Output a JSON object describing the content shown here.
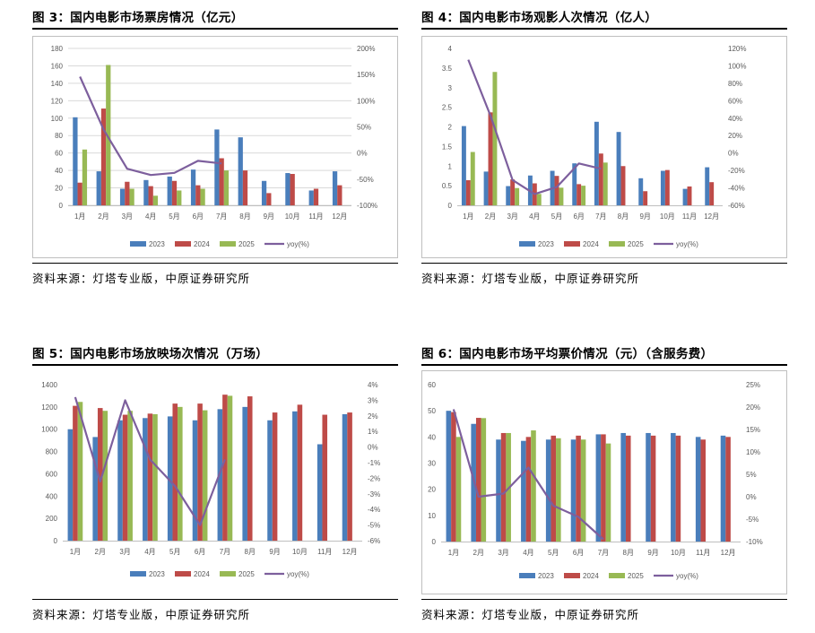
{
  "colors": {
    "2023": "#4a7ebb",
    "2024": "#be4b48",
    "2025": "#98b954",
    "yoy": "#7d5f9d",
    "grid": "#d9d9d9",
    "axis": "#bfbfbf",
    "tick": "#595959"
  },
  "panels": [
    {
      "title": "图 3：国内电影市场票房情况（亿元）",
      "source": "资料来源：灯塔专业版，中原证券研究所",
      "chart_data": {
        "type": "bar",
        "title": "",
        "categories": [
          "1月",
          "2月",
          "3月",
          "4月",
          "5月",
          "6月",
          "7月",
          "8月",
          "9月",
          "10月",
          "11月",
          "12月"
        ],
        "series": [
          {
            "name": "2023",
            "axis": "left",
            "values": [
              101,
              39,
              19,
              29,
              33,
              41,
              87,
              78,
              28,
              37,
              17,
              39
            ]
          },
          {
            "name": "2024",
            "axis": "left",
            "values": [
              26,
              111,
              27,
              22,
              28,
              23,
              54,
              40,
              14,
              36,
              19,
              23
            ]
          },
          {
            "name": "2025",
            "axis": "left",
            "values": [
              64,
              161,
              19,
              11,
              17,
              19,
              40,
              null,
              null,
              null,
              null,
              null
            ]
          },
          {
            "name": "yoy(%)",
            "axis": "right",
            "type": "line",
            "values": [
              146,
              45,
              -30,
              -42,
              -38,
              -15,
              -20,
              null,
              null,
              null,
              null,
              null
            ]
          }
        ],
        "yLeft": {
          "min": 0,
          "max": 180,
          "ticks": [
            "0",
            "20",
            "40",
            "60",
            "80",
            "100",
            "120",
            "140",
            "160",
            "180"
          ]
        },
        "yRight": {
          "min": -100,
          "max": 200,
          "ticks": [
            "-100%",
            "-50%",
            "0%",
            "50%",
            "100%",
            "150%",
            "200%"
          ]
        },
        "legend": [
          "2023",
          "2024",
          "2025",
          "yoy(%)"
        ],
        "legend_position": "bottom",
        "grid": true
      }
    },
    {
      "title": "图 4：国内电影市场观影人次情况（亿人）",
      "source": "资料来源：灯塔专业版，中原证券研究所",
      "chart_data": {
        "type": "bar",
        "title": "",
        "categories": [
          "1月",
          "2月",
          "3月",
          "4月",
          "5月",
          "6月",
          "7月",
          "8月",
          "9月",
          "10月",
          "11月",
          "12月"
        ],
        "series": [
          {
            "name": "2023",
            "axis": "left",
            "values": [
              2.02,
              0.86,
              0.49,
              0.76,
              0.88,
              1.07,
              2.13,
              1.87,
              0.69,
              0.88,
              0.42,
              0.97
            ]
          },
          {
            "name": "2024",
            "axis": "left",
            "values": [
              0.64,
              2.37,
              0.66,
              0.56,
              0.75,
              0.54,
              1.32,
              1.0,
              0.36,
              0.9,
              0.48,
              0.59
            ]
          },
          {
            "name": "2025",
            "axis": "left",
            "values": [
              1.36,
              3.4,
              0.44,
              0.29,
              0.45,
              0.5,
              1.09,
              null,
              null,
              null,
              null,
              null
            ]
          },
          {
            "name": "yoy(%)",
            "axis": "right",
            "type": "line",
            "values": [
              107,
              43,
              -31,
              -47,
              -39,
              -12,
              -18,
              null,
              null,
              null,
              null,
              null
            ]
          }
        ],
        "yLeft": {
          "min": 0,
          "max": 4,
          "ticks": [
            "0",
            "0.5",
            "1",
            "1.5",
            "2",
            "2.5",
            "3",
            "3.5",
            "4"
          ]
        },
        "yRight": {
          "min": -60,
          "max": 120,
          "ticks": [
            "-60%",
            "-40%",
            "-20%",
            "0%",
            "20%",
            "40%",
            "60%",
            "80%",
            "100%",
            "120%"
          ]
        },
        "legend": [
          "2023",
          "2024",
          "2025",
          "yoy(%)"
        ],
        "legend_position": "bottom",
        "grid": false
      }
    },
    {
      "title": "图 5：国内电影市场放映场次情况（万场）",
      "source": "资料来源：灯塔专业版，中原证券研究所",
      "chart_data": {
        "type": "bar",
        "title": "",
        "categories": [
          "1月",
          "2月",
          "3月",
          "4月",
          "5月",
          "6月",
          "7月",
          "8月",
          "9月",
          "10月",
          "11月",
          "12月"
        ],
        "series": [
          {
            "name": "2023",
            "axis": "left",
            "values": [
              1000,
              930,
              1080,
              1100,
              1115,
              1080,
              1180,
              1200,
              1080,
              1160,
              865,
              1135
            ]
          },
          {
            "name": "2024",
            "axis": "left",
            "values": [
              1210,
              1190,
              1130,
              1140,
              1230,
              1230,
              1310,
              1295,
              1150,
              1220,
              1130,
              1150
            ]
          },
          {
            "name": "2025",
            "axis": "left",
            "values": [
              1245,
              1165,
              1165,
              1135,
              1200,
              1170,
              1300,
              null,
              null,
              null,
              null,
              null
            ]
          },
          {
            "name": "yoy(%)",
            "axis": "right",
            "type": "line",
            "values": [
              3.2,
              -2.2,
              3.0,
              -0.8,
              -2.5,
              -5.0,
              -0.8,
              null,
              null,
              null,
              null,
              null
            ]
          }
        ],
        "yLeft": {
          "min": 0,
          "max": 1400,
          "ticks": [
            "0",
            "200",
            "400",
            "600",
            "800",
            "1000",
            "1200",
            "1400"
          ]
        },
        "yRight": {
          "min": -6,
          "max": 4,
          "ticks": [
            "-6%",
            "-5%",
            "-4%",
            "-3%",
            "-2%",
            "-1%",
            "0%",
            "1%",
            "2%",
            "3%",
            "4%"
          ]
        },
        "legend": [
          "2023",
          "2024",
          "2025",
          "yoy(%)"
        ],
        "legend_position": "bottom",
        "grid": false
      }
    },
    {
      "title": "图 6：国内电影市场平均票价情况（元）（含服务费）",
      "source": "资料来源：灯塔专业版，中原证券研究所",
      "chart_data": {
        "type": "bar",
        "title": "",
        "categories": [
          "1月",
          "2月",
          "3月",
          "4月",
          "5月",
          "6月",
          "7月",
          "8月",
          "9月",
          "10月",
          "11月",
          "12月"
        ],
        "series": [
          {
            "name": "2023",
            "axis": "left",
            "values": [
              50,
              45,
              39,
              38.5,
              39,
              39,
              41,
              41.5,
              41.5,
              41.5,
              40,
              40.5
            ]
          },
          {
            "name": "2024",
            "axis": "left",
            "values": [
              49.5,
              47.3,
              41.5,
              40,
              40.5,
              40.5,
              41,
              40.5,
              40.5,
              40.5,
              39,
              40
            ]
          },
          {
            "name": "2025",
            "axis": "left",
            "values": [
              40,
              47.2,
              41.5,
              42.5,
              39.5,
              39,
              37.5,
              null,
              null,
              null,
              null,
              null
            ]
          },
          {
            "name": "yoy(%)",
            "axis": "right",
            "type": "line",
            "values": [
              19.5,
              0,
              0.7,
              6.5,
              -2,
              -4.5,
              -9.5,
              null,
              null,
              null,
              null,
              null
            ]
          }
        ],
        "yLeft": {
          "min": 0,
          "max": 60,
          "ticks": [
            "0",
            "10",
            "20",
            "30",
            "40",
            "50",
            "60"
          ]
        },
        "yRight": {
          "min": -10,
          "max": 25,
          "ticks": [
            "-10%",
            "-5%",
            "0%",
            "5%",
            "10%",
            "15%",
            "20%",
            "25%"
          ]
        },
        "legend": [
          "2023",
          "2024",
          "2025",
          "yoy(%)"
        ],
        "legend_position": "bottom",
        "grid": false
      }
    }
  ]
}
